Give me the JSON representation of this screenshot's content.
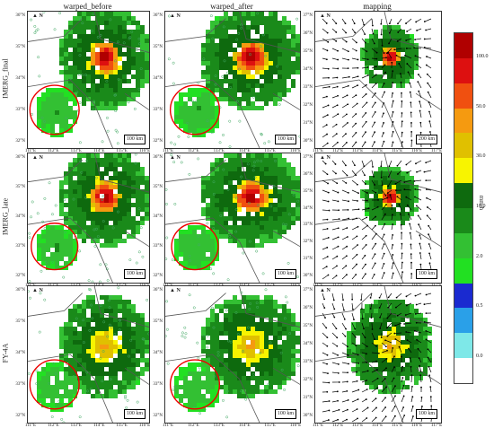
{
  "columns": [
    "warped_before",
    "warped_after",
    "mapping"
  ],
  "rows": [
    "IMERG_final",
    "IMERG_late",
    "FY-4A"
  ],
  "scalebars": [
    [
      "100 km",
      "100 km",
      "200 km"
    ],
    [
      "100 km",
      "100 km",
      "100 km"
    ],
    [
      "100 km",
      "100 km",
      "100 km"
    ]
  ],
  "north_label": "N",
  "ytick_sets": {
    "a": [
      "36°N",
      "35°N",
      "34°N",
      "33°N",
      "32°N"
    ],
    "b": [
      "37°N",
      "36°N",
      "35°N",
      "34°N",
      "33°N",
      "32°N",
      "31°N",
      "30°N"
    ]
  },
  "xtick_sets": {
    "a": [
      "111°E",
      "112°E",
      "113°E",
      "114°E",
      "115°E",
      "116°E"
    ],
    "b": [
      "111°E",
      "112°E",
      "113°E",
      "114°E",
      "115°E",
      "116°E",
      "117°E"
    ]
  },
  "chart_data": {
    "type": "heatmap",
    "colorbar": {
      "unit": "mm/h",
      "ticks": [
        "100.0",
        "50.0",
        "30.0",
        "10.0",
        "2.0",
        "0.5",
        "0.0"
      ],
      "levels": [
        {
          "from": 0.0,
          "to": 0.5,
          "color": "#ffffff"
        },
        {
          "from": 0.0,
          "to": 0.5,
          "color": "#7ee8e8"
        },
        {
          "from": 0.5,
          "to": 2.0,
          "color": "#2aa0e8"
        },
        {
          "from": 0.5,
          "to": 2.0,
          "color": "#1a2ad0"
        },
        {
          "from": 2.0,
          "to": 10.0,
          "color": "#22e022"
        },
        {
          "from": 2.0,
          "to": 10.0,
          "color": "#33c033"
        },
        {
          "from": 10.0,
          "to": 30.0,
          "color": "#1a8a1a"
        },
        {
          "from": 10.0,
          "to": 30.0,
          "color": "#0e6a0e"
        },
        {
          "from": 30.0,
          "to": 50.0,
          "color": "#f8f400"
        },
        {
          "from": 30.0,
          "to": 50.0,
          "color": "#e0c000"
        },
        {
          "from": 50.0,
          "to": 100.0,
          "color": "#f59a10"
        },
        {
          "from": 50.0,
          "to": 100.0,
          "color": "#f05010"
        },
        {
          "from": 100.0,
          "to": 100.0,
          "color": "#dd1010"
        },
        {
          "from": 100.0,
          "to": 100.0,
          "color": "#b00000"
        }
      ]
    }
  }
}
